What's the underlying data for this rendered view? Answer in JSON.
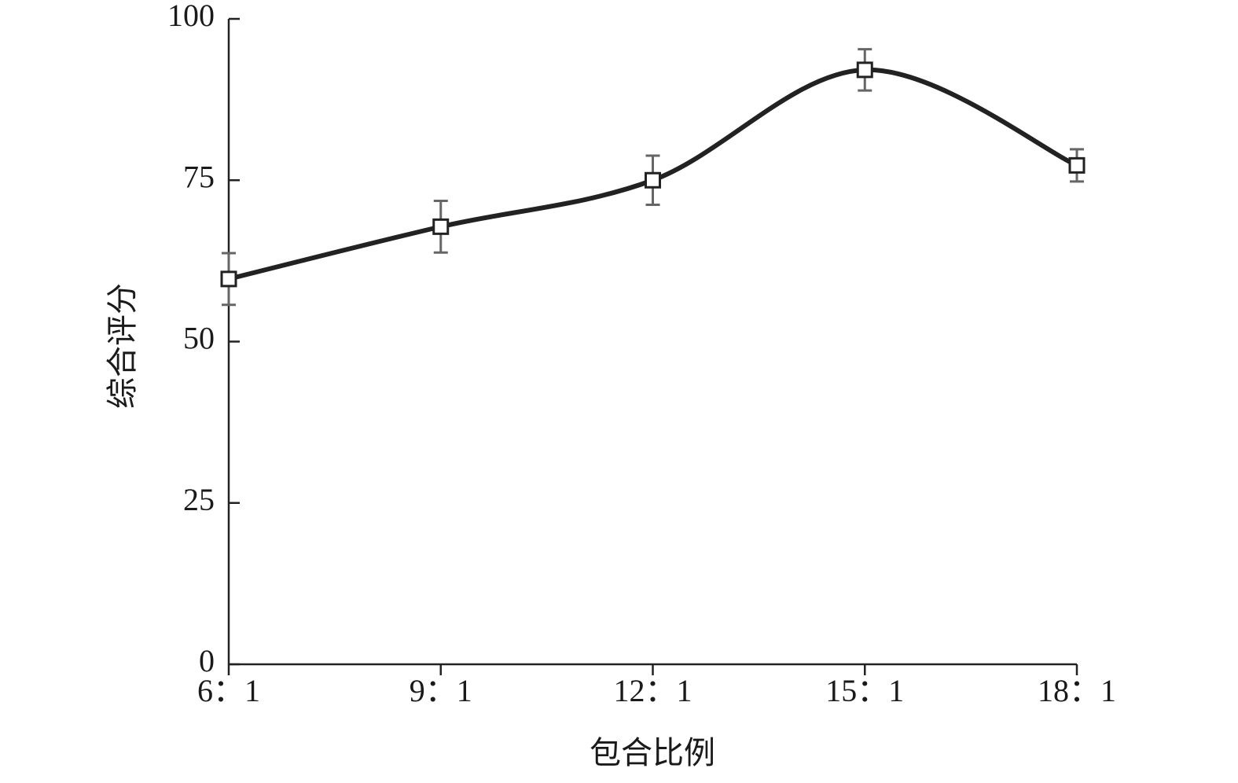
{
  "chart_data": {
    "type": "line",
    "x_label": "包合比例",
    "y_label": "综合评分",
    "categories": [
      "6：1",
      "9：1",
      "12：1",
      "15：1",
      "18：1"
    ],
    "values": [
      59.7,
      67.8,
      75.0,
      92.1,
      77.3
    ],
    "errors": [
      4,
      4,
      3.8,
      3.2,
      2.5
    ],
    "color": "#222222",
    "error_color": "#666666",
    "ylim": [
      0,
      100
    ],
    "yticks": [
      0,
      25,
      50,
      75,
      100
    ],
    "grid": false
  }
}
